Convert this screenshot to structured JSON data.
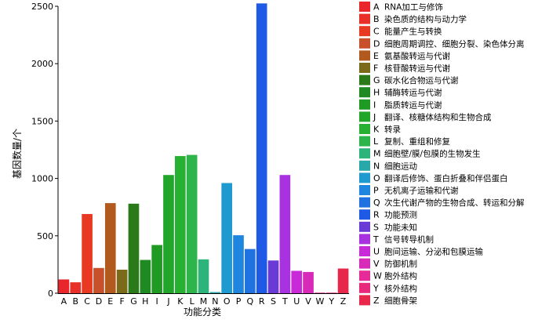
{
  "chart_data": {
    "type": "bar",
    "xlabel": "功能分类",
    "ylabel": "基因数量/个",
    "ylim": [
      0,
      2500
    ],
    "yticks": [
      0,
      500,
      1000,
      1500,
      2000,
      2500
    ],
    "grid": false,
    "legend_position": "right",
    "categories": [
      "A",
      "B",
      "C",
      "D",
      "E",
      "F",
      "G",
      "H",
      "I",
      "J",
      "K",
      "L",
      "M",
      "N",
      "O",
      "P",
      "Q",
      "R",
      "S",
      "T",
      "U",
      "V",
      "W",
      "Y",
      "Z"
    ],
    "values": [
      120,
      95,
      690,
      220,
      785,
      205,
      780,
      290,
      420,
      1030,
      1195,
      1205,
      295,
      10,
      960,
      505,
      385,
      2525,
      285,
      1030,
      195,
      185,
      5,
      5,
      215
    ],
    "colors": [
      "#e8262c",
      "#e82f28",
      "#e83a22",
      "#c8502a",
      "#b25a1e",
      "#7a6a1a",
      "#2a7a1a",
      "#1f8a22",
      "#1f9a22",
      "#22a62a",
      "#28b033",
      "#2db44a",
      "#2cb47a",
      "#28a8a8",
      "#1f9ad0",
      "#1f86e0",
      "#1f72e0",
      "#1f5ae6",
      "#6a3ad6",
      "#a832e0",
      "#c82ad8",
      "#d82ab8",
      "#e62a98",
      "#e8287a",
      "#e8284a"
    ],
    "legend": [
      {
        "code": "A",
        "label": "RNA加工与修饰"
      },
      {
        "code": "B",
        "label": "染色质的结构与动力学"
      },
      {
        "code": "C",
        "label": "能量产生与转换"
      },
      {
        "code": "D",
        "label": "细胞周期调控、细胞分裂、染色体分离"
      },
      {
        "code": "E",
        "label": "氨基酸转运与代谢"
      },
      {
        "code": "F",
        "label": "核苷酸转运与代谢"
      },
      {
        "code": "G",
        "label": "碳水化合物运与代谢"
      },
      {
        "code": "H",
        "label": "辅酶转运与代谢"
      },
      {
        "code": "I",
        "label": "脂质转运与代谢"
      },
      {
        "code": "J",
        "label": "翻译、核糖体结构和生物合成"
      },
      {
        "code": "K",
        "label": "转录"
      },
      {
        "code": "L",
        "label": "复制、重组和修复"
      },
      {
        "code": "M",
        "label": "细胞壁/膜/包膜的生物发生"
      },
      {
        "code": "N",
        "label": "细胞运动"
      },
      {
        "code": "O",
        "label": "翻译后修饰、蛋白折叠和伴侣蛋白"
      },
      {
        "code": "P",
        "label": "无机离子运输和代谢"
      },
      {
        "code": "Q",
        "label": "次生代谢产物的生物合成、转运和分解"
      },
      {
        "code": "R",
        "label": "功能预测"
      },
      {
        "code": "S",
        "label": "功能未知"
      },
      {
        "code": "T",
        "label": "信号转导机制"
      },
      {
        "code": "U",
        "label": "胞间运输、分泌和包膜运输"
      },
      {
        "code": "V",
        "label": "防御机制"
      },
      {
        "code": "W",
        "label": "胞外结构"
      },
      {
        "code": "Y",
        "label": "核外结构"
      },
      {
        "code": "Z",
        "label": "细胞骨架"
      }
    ]
  }
}
